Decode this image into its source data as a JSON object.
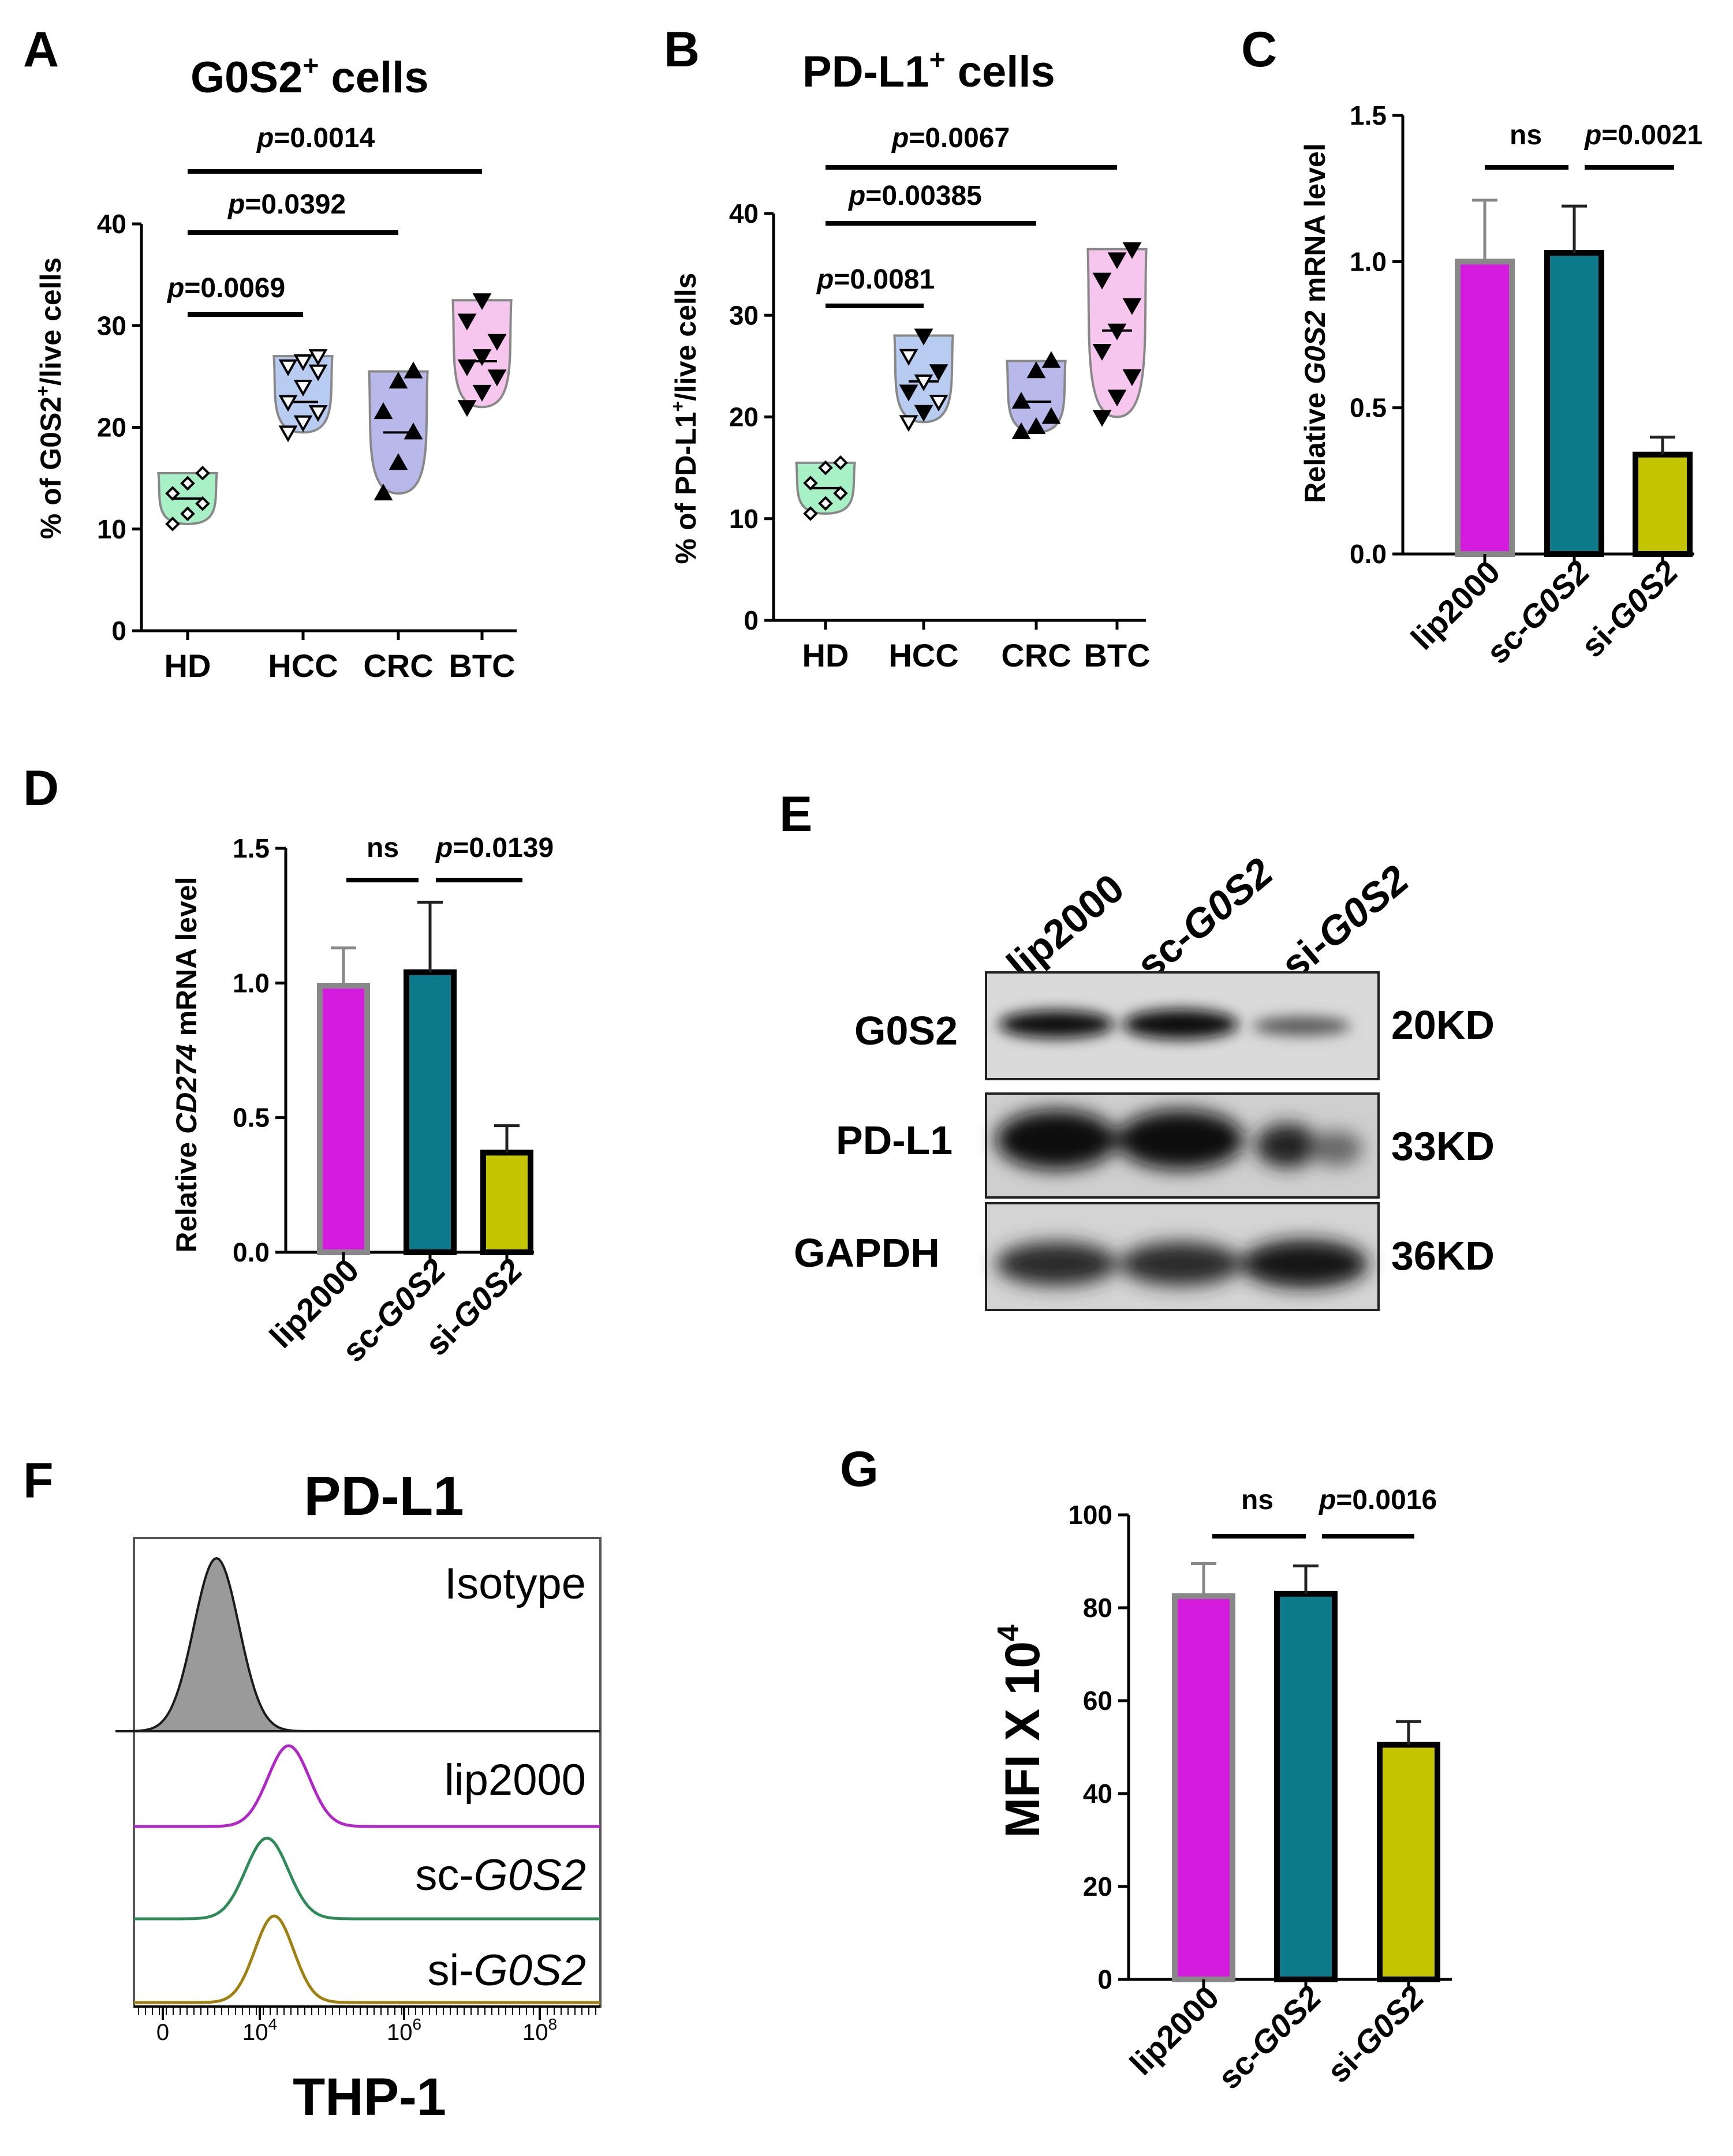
{
  "panels": {
    "A": {
      "label": "A",
      "title": "G0S2",
      "title_sup": "+",
      "title_rest": " cells",
      "ylabel_pre": "% of G0S2",
      "ylabel_sup": "+",
      "ylabel_post": "/live cells",
      "sig_left": [
        {
          "p": "p",
          "val": "=0.0069"
        },
        {
          "p": "p",
          "val": "=0.0392"
        },
        {
          "p": "p",
          "val": "=0.0014"
        }
      ]
    },
    "B": {
      "label": "B",
      "title": "PD-L1",
      "title_sup": "+",
      "title_rest": " cells",
      "ylabel_pre": "% of PD-L1",
      "ylabel_sup": "+",
      "ylabel_post": "/live cells",
      "sig_left": [
        {
          "p": "p",
          "val": "=0.0081"
        },
        {
          "p": "p",
          "val": "=0.00385"
        },
        {
          "p": "p",
          "val": "=0.0067"
        }
      ]
    },
    "C": {
      "label": "C",
      "ylabel_pre": "Relative ",
      "ylabel_ital": "G0S2",
      "ylabel_post": " mRNA level",
      "ns": "ns",
      "p": "p",
      "pval": "=0.0021"
    },
    "D": {
      "label": "D",
      "ylabel_pre": "Relative ",
      "ylabel_ital": "CD274",
      "ylabel_post": " mRNA level",
      "ns": "ns",
      "p": "p",
      "pval": "=0.0139"
    },
    "E": {
      "label": "E",
      "lanes": [
        {
          "pre": "lip2000",
          "ital": ""
        },
        {
          "pre": "sc-",
          "ital": "G0S2"
        },
        {
          "pre": "si-",
          "ital": "G0S2"
        }
      ],
      "rows": [
        {
          "protein": "G0S2",
          "size": "20KD"
        },
        {
          "protein": "PD-L1",
          "size": "33KD"
        },
        {
          "protein": "GAPDH",
          "size": "36KD"
        }
      ]
    },
    "F": {
      "label": "F",
      "title": "PD-L1",
      "xlabel": "THP-1",
      "xticks": [
        {
          "base": "0",
          "exp": ""
        },
        {
          "base": "10",
          "exp": "4"
        },
        {
          "base": "10",
          "exp": "6"
        },
        {
          "base": "10",
          "exp": "8"
        }
      ],
      "tracks": [
        {
          "pre": "Isotype",
          "ital": "",
          "color": "#1a1a1a"
        },
        {
          "pre": "lip2000",
          "ital": "",
          "color": "#b126c8"
        },
        {
          "pre": "sc-",
          "ital": "G0S2",
          "color": "#2e8b57"
        },
        {
          "pre": "si-",
          "ital": "G0S2",
          "color": "#a08010"
        }
      ]
    },
    "G": {
      "label": "G",
      "ylabel_pre": "MFI X 10",
      "ylabel_sup": "4",
      "ns": "ns",
      "p": "p",
      "pval": "=0.0016"
    }
  },
  "colors": {
    "lip2000": "#d51bde",
    "sc_G0S2": "#0d7a8c",
    "si_G0S2": "#c4c400",
    "HD": "#a8f0c6",
    "HCC": "#b8ccf2",
    "CRC": "#b9b8ea",
    "BTC": "#f6c6ee"
  },
  "chart_data": [
    {
      "panel": "A",
      "type": "scatter",
      "categories": [
        "HD",
        "HCC",
        "CRC",
        "BTC"
      ],
      "ylim": [
        0,
        40
      ],
      "yticks": [
        "0",
        "10",
        "20",
        "30",
        "40"
      ],
      "points": [
        [
          10.5,
          11.5,
          12.5,
          13.5,
          14.5,
          15.5
        ],
        [
          19.5,
          20.5,
          21.5,
          22.5,
          24,
          25.5,
          26,
          26.5,
          27
        ],
        [
          13.5,
          16.5,
          19.5,
          21.5,
          24.5,
          25.5
        ],
        [
          22,
          23.5,
          25,
          26,
          27,
          28.5,
          30.5,
          32.5
        ]
      ],
      "means": [
        13,
        22.5,
        19.5,
        26.5
      ]
    },
    {
      "panel": "B",
      "type": "scatter",
      "categories": [
        "HD",
        "HCC",
        "CRC",
        "BTC"
      ],
      "ylim": [
        0,
        40
      ],
      "yticks": [
        "0",
        "10",
        "20",
        "30",
        "40"
      ],
      "points": [
        [
          10.5,
          11.5,
          12.5,
          13.5,
          15,
          15.5
        ],
        [
          19.5,
          20.5,
          21.5,
          22.5,
          23.5,
          24.5,
          26,
          28
        ],
        [
          18.5,
          19,
          20,
          21.5,
          24.5,
          25.5
        ],
        [
          20,
          22,
          24,
          26.5,
          28.5,
          31,
          33.5,
          35.5,
          36.5
        ]
      ],
      "means": [
        13,
        23.5,
        21.5,
        28.5
      ]
    },
    {
      "panel": "C",
      "type": "bar",
      "categories": [
        "lip2000",
        "sc-G0S2",
        "si-G0S2"
      ],
      "values": [
        1.0,
        1.03,
        0.34
      ],
      "errors": [
        0.21,
        0.16,
        0.06
      ],
      "ylim": [
        0,
        1.5
      ],
      "yticks": [
        "0.0",
        "0.5",
        "1.0",
        "1.5"
      ]
    },
    {
      "panel": "D",
      "type": "bar",
      "categories": [
        "lip2000",
        "sc-G0S2",
        "si-G0S2"
      ],
      "values": [
        0.99,
        1.04,
        0.37
      ],
      "errors": [
        0.14,
        0.26,
        0.1
      ],
      "ylim": [
        0,
        1.5
      ],
      "yticks": [
        "0.0",
        "0.5",
        "1.0",
        "1.5"
      ]
    },
    {
      "panel": "G",
      "type": "bar",
      "categories": [
        "lip2000",
        "sc-G0S2",
        "si-G0S2"
      ],
      "values": [
        82.5,
        83,
        50.5
      ],
      "errors": [
        7,
        6,
        5
      ],
      "ylim": [
        0,
        100
      ],
      "yticks": [
        "0",
        "20",
        "40",
        "60",
        "80",
        "100"
      ]
    },
    {
      "panel": "F",
      "type": "area",
      "xscale": "log",
      "peaks_log10": [
        3.4,
        4.4,
        4.1,
        4.2
      ],
      "peak_widths_log10": [
        0.35,
        0.32,
        0.33,
        0.3
      ]
    }
  ]
}
